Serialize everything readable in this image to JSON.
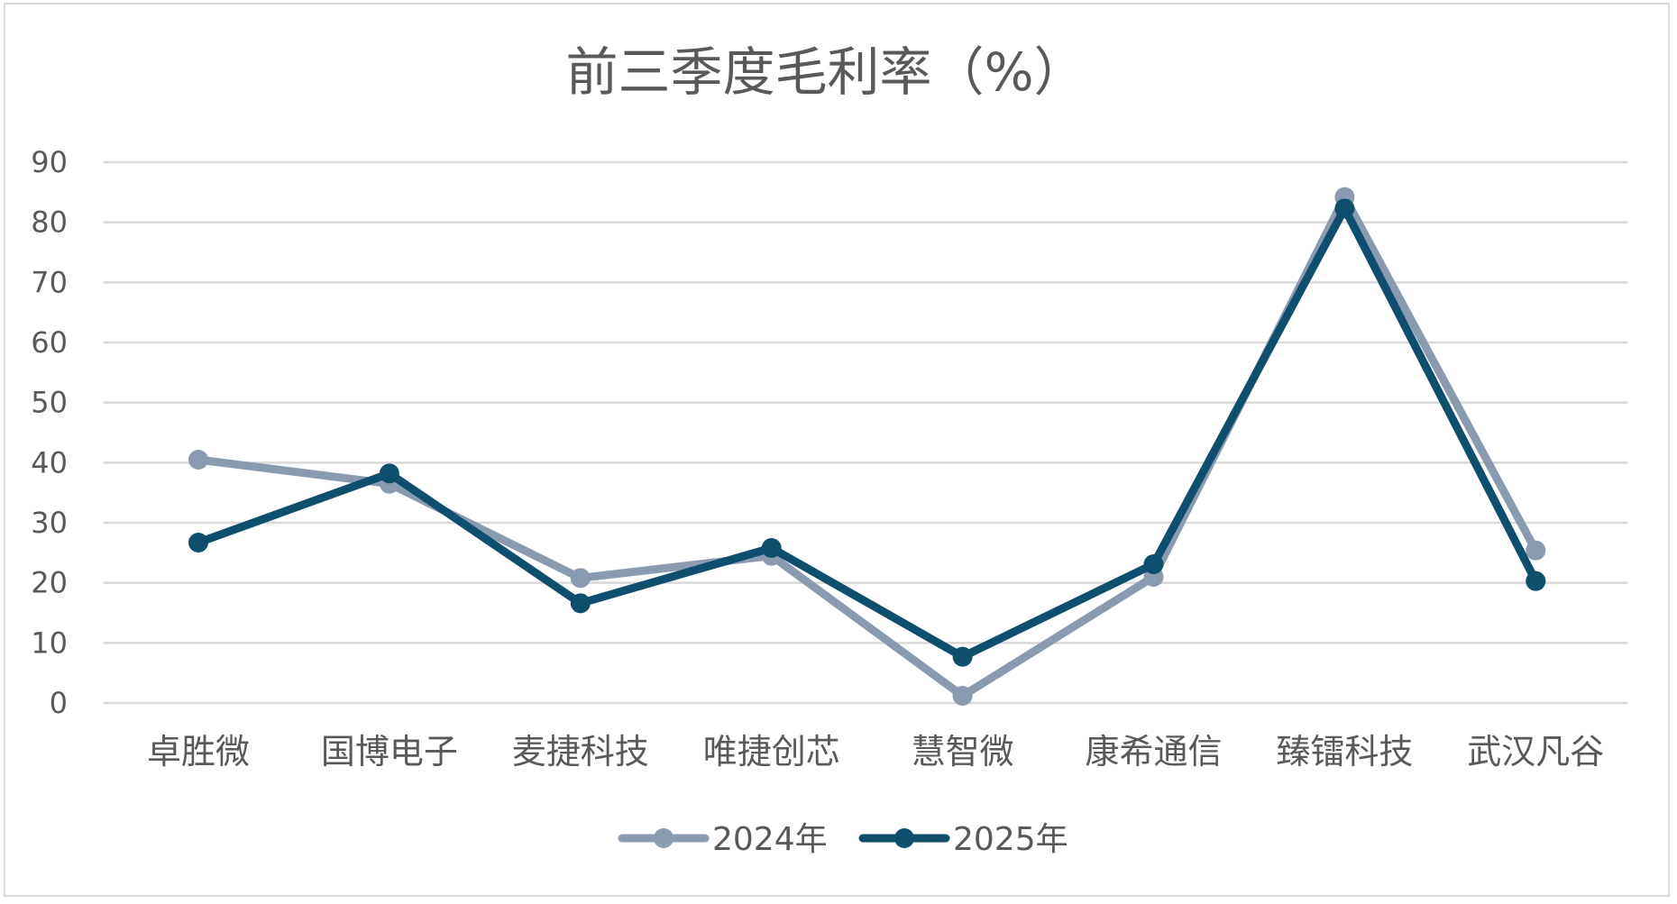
{
  "chart_data": {
    "type": "line",
    "title": "前三季度毛利率（%）",
    "categories": [
      "卓胜微",
      "国博电子",
      "麦捷科技",
      "唯捷创芯",
      "慧智微",
      "康希通信",
      "臻镭科技",
      "武汉凡谷"
    ],
    "series": [
      {
        "name": "2024年",
        "color": "#8a9bb0",
        "values": [
          40.5,
          36.5,
          20.8,
          24.5,
          1.2,
          21.0,
          84.2,
          25.4
        ]
      },
      {
        "name": "2025年",
        "color": "#0e4f6e",
        "values": [
          26.7,
          38.2,
          16.6,
          25.8,
          7.7,
          23.1,
          82.3,
          20.3
        ]
      }
    ],
    "ylim": [
      0,
      90
    ],
    "yticks": [
      "0",
      "10",
      "20",
      "30",
      "40",
      "50",
      "60",
      "70",
      "80",
      "90"
    ],
    "xlabel": "",
    "ylabel": "",
    "grid": true,
    "legend": "bottom"
  }
}
